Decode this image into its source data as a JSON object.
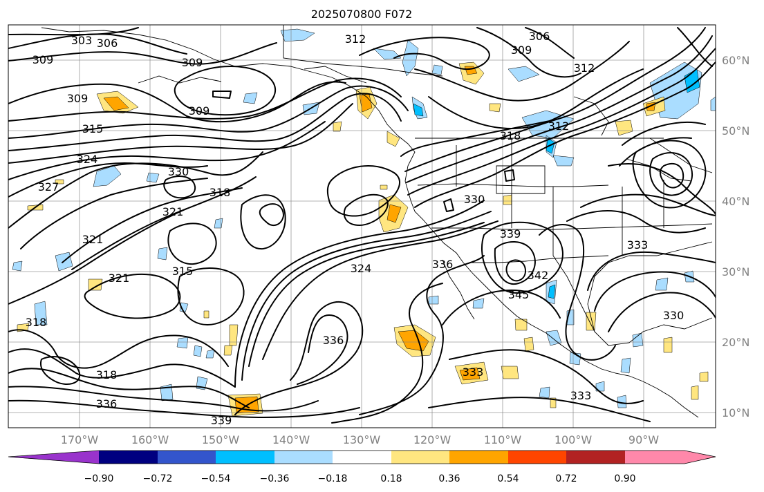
{
  "title": "2025070800 F072",
  "colors": {
    "cool": [
      "#9933cc",
      "#000080",
      "#3355cc",
      "#00bfff",
      "#aaddff"
    ],
    "neutral": "#ffffff",
    "warm": [
      "#ffe680",
      "#ffa500",
      "#ff4500",
      "#b22222",
      "#ff88aa"
    ],
    "contour": "#000000",
    "grid": "#808080"
  },
  "lat_labels": [
    "60°N",
    "50°N",
    "40°N",
    "30°N",
    "20°N",
    "10°N"
  ],
  "lon_labels": [
    "170°W",
    "160°W",
    "150°W",
    "140°W",
    "130°W",
    "120°W",
    "110°W",
    "100°W",
    "90°W"
  ],
  "colorbar": {
    "ticks": [
      "−0.90",
      "−0.72",
      "−0.54",
      "−0.36",
      "−0.18",
      "0.18",
      "0.36",
      "0.54",
      "0.72",
      "0.90"
    ],
    "bins": [
      "#9933cc",
      "#000080",
      "#3355cc",
      "#00bfff",
      "#aaddff",
      "#ffffff",
      "#ffe680",
      "#ffa500",
      "#ff4500",
      "#b22222",
      "#ff88aa"
    ]
  },
  "contour_labels": [
    "303",
    "306",
    "309",
    "309",
    "309",
    "306",
    "309",
    "312",
    "312",
    "309",
    "315",
    "324",
    "327",
    "330",
    "318",
    "321",
    "321",
    "315",
    "321",
    "318",
    "318",
    "336",
    "339",
    "330",
    "339",
    "333",
    "336",
    "324",
    "342",
    "345",
    "336",
    "333",
    "333",
    "330",
    "318",
    "312"
  ]
}
